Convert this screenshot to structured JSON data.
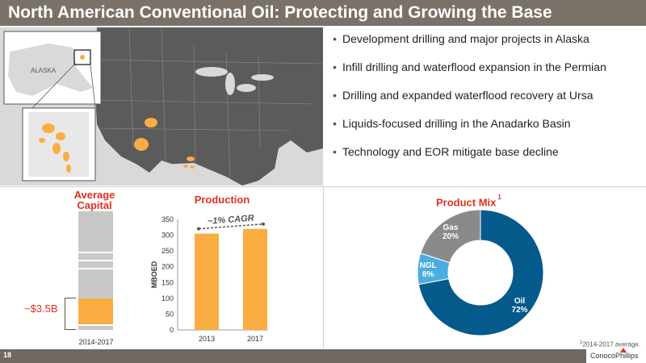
{
  "title": "North American Conventional Oil: Protecting and Growing the Base",
  "map": {
    "inset_label": "ALASKA"
  },
  "bullets": [
    "Development drilling and major projects in Alaska",
    "Infill drilling and waterflood expansion in the Permian",
    "Drilling and expanded waterflood recovery at Ursa",
    "Liquids-focused drilling in the Anadarko Basin",
    "Technology and EOR mitigate base decline"
  ],
  "capital": {
    "title": "Average Capital",
    "value_label": "~$3.5B",
    "x_label": "2014-2017"
  },
  "production": {
    "title": "Production",
    "cagr_label": "~1% CAGR"
  },
  "product_mix": {
    "title": "Product Mix",
    "title_sup": "1"
  },
  "footnote": {
    "sup": "1",
    "text": "2014-2017 average."
  },
  "footer": {
    "page_number": "18",
    "logo_text": "ConocoPhillips"
  },
  "colors": {
    "title_bar": "#7a7268",
    "accent_red": "#e03020",
    "orange": "#f9ad42",
    "oil": "#055a8c",
    "ngl": "#4baee0",
    "gas": "#8a8a8a"
  },
  "chart_data": [
    {
      "type": "bar",
      "title": "Production",
      "categories": [
        "2013",
        "2017"
      ],
      "values": [
        305,
        320
      ],
      "ylabel": "MBOED",
      "ylim": [
        0,
        350
      ],
      "yticks": [
        0,
        50,
        100,
        150,
        200,
        250,
        300,
        350
      ],
      "annotation": "~1% CAGR"
    },
    {
      "type": "pie",
      "title": "Product Mix",
      "slices": [
        {
          "label": "Oil",
          "value": 72,
          "display": "72%"
        },
        {
          "label": "NGL",
          "value": 8,
          "display": "8%"
        },
        {
          "label": "Gas",
          "value": 20,
          "display": "20%"
        }
      ]
    }
  ]
}
